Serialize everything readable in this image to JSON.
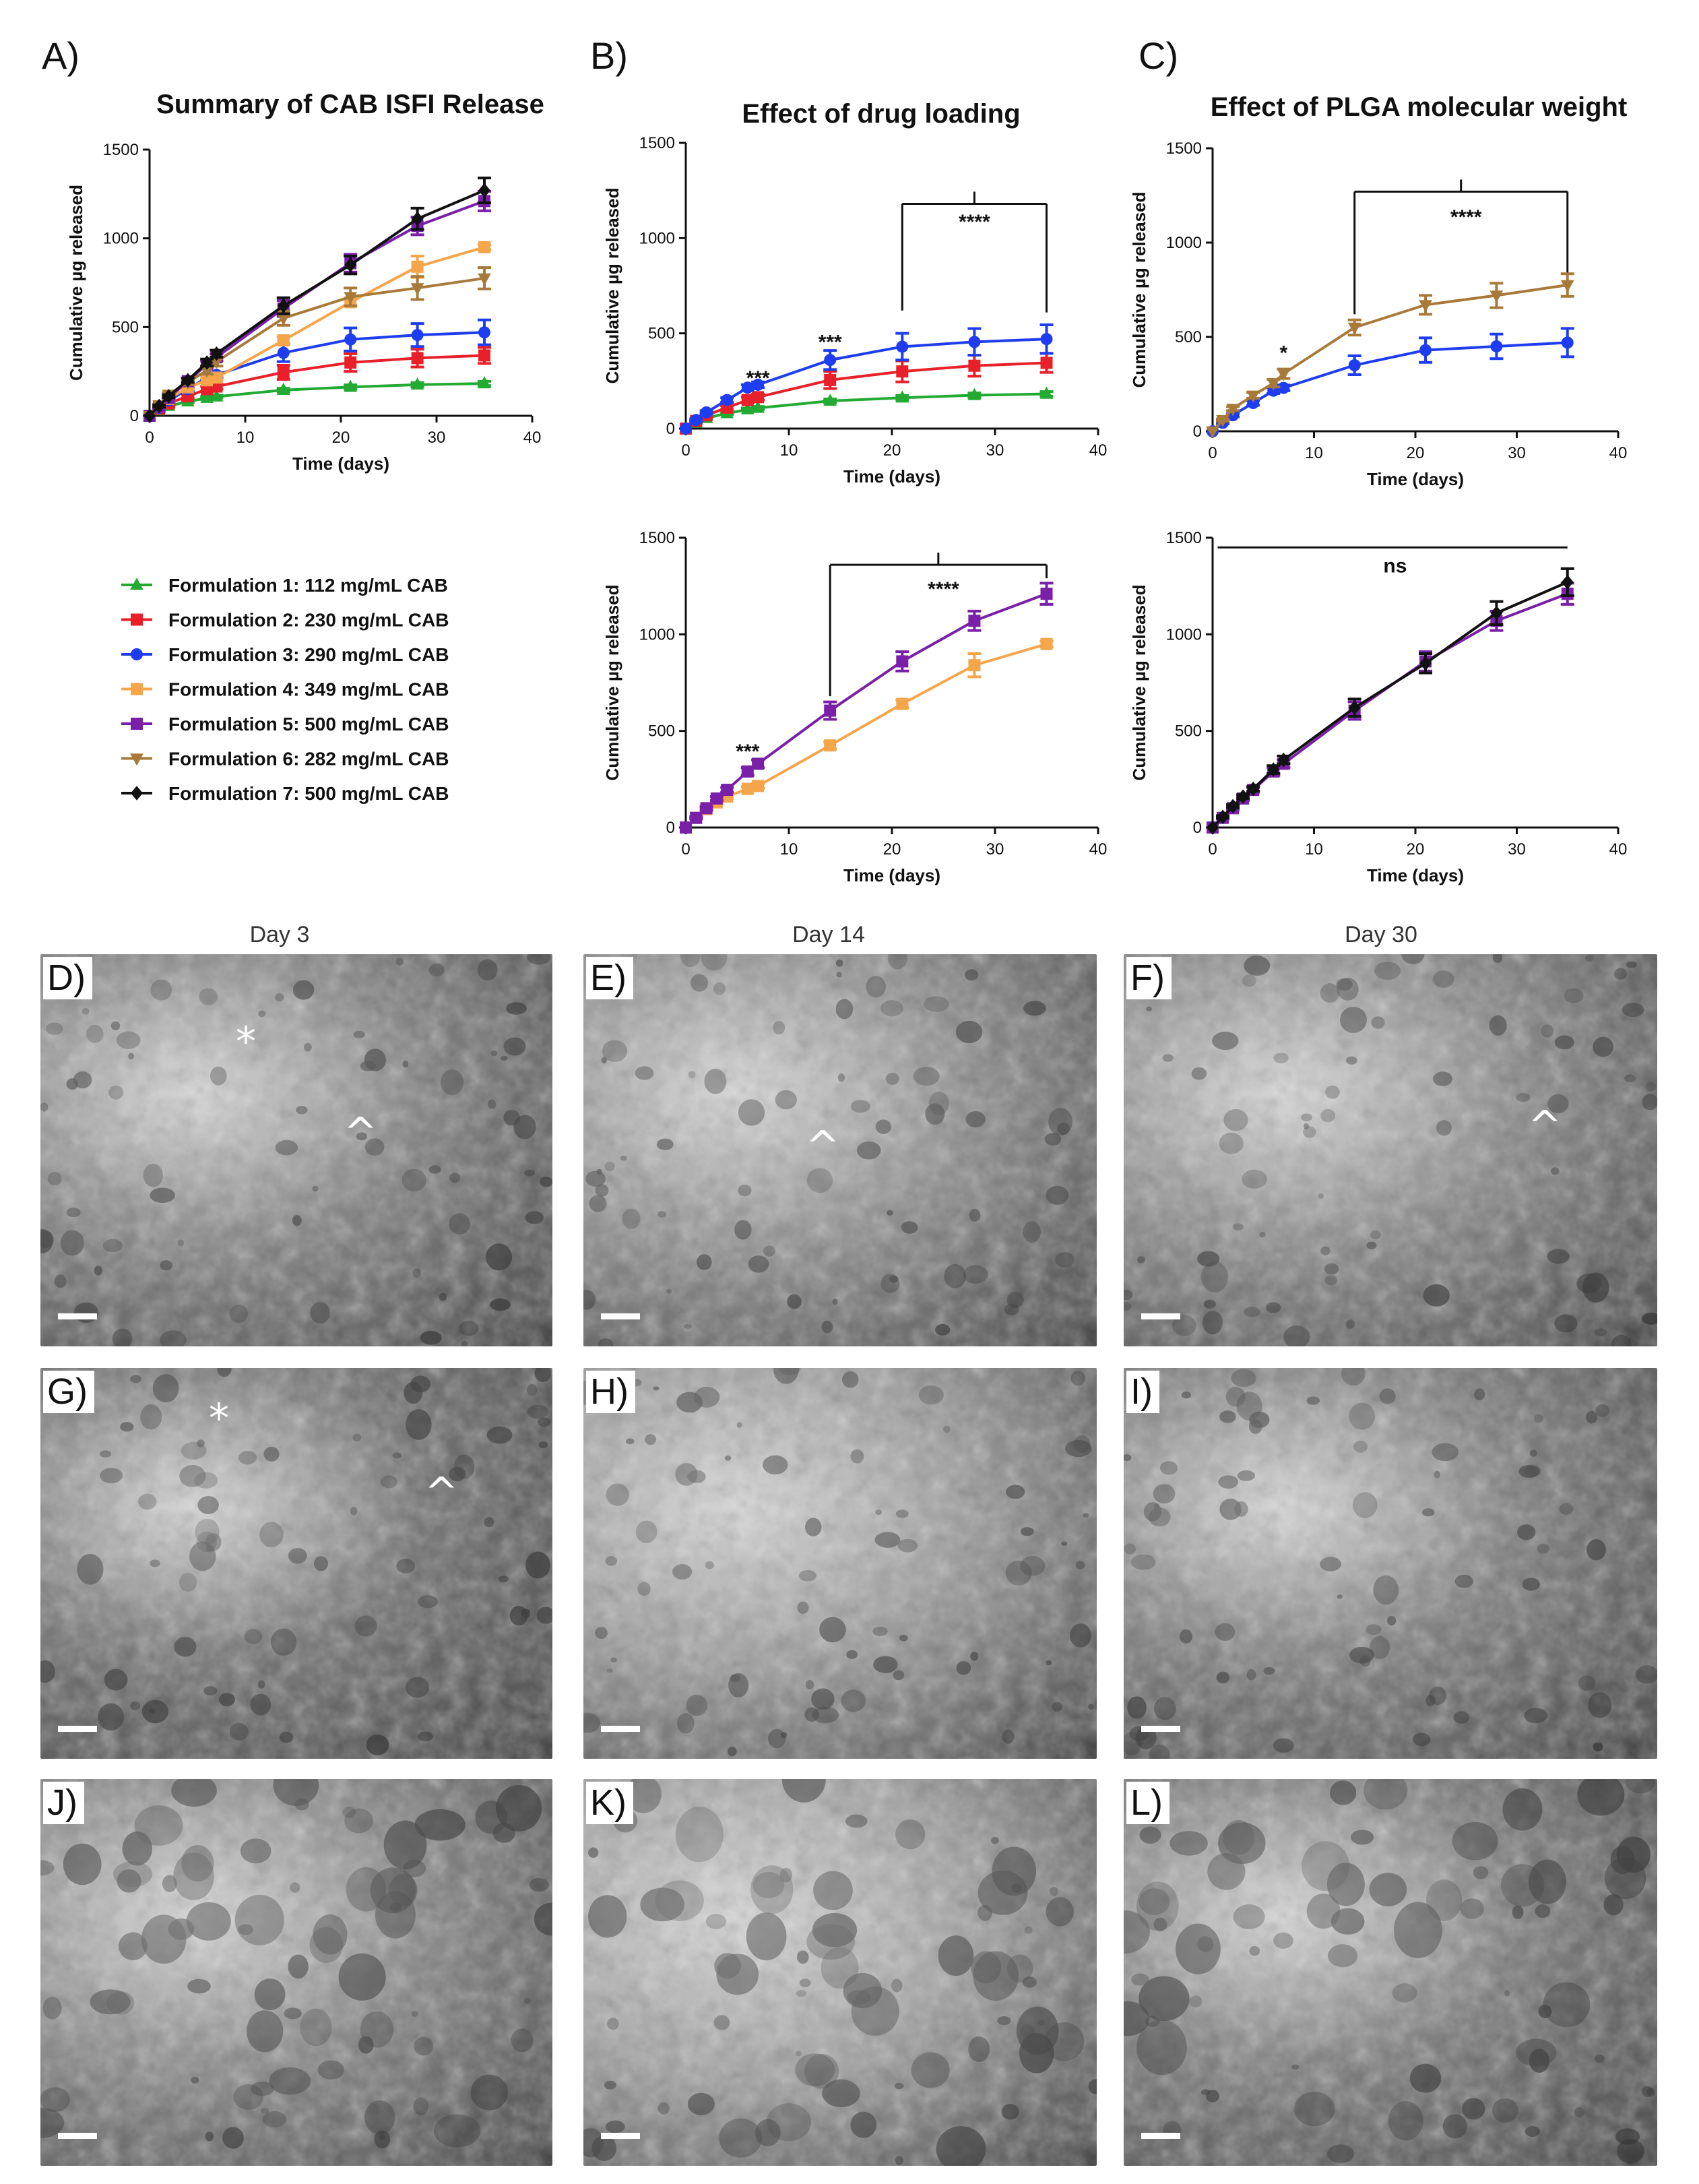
{
  "chart_data": [
    {
      "panel": "A)",
      "type": "line",
      "title": "Summary of CAB ISFI Release",
      "xlabel": "Time (days)",
      "ylabel": "Cumulative µg released",
      "xlim": [
        0,
        40
      ],
      "ylim": [
        0,
        1500
      ],
      "xticks": [
        "0",
        "10",
        "20",
        "30",
        "40"
      ],
      "yticks": [
        "0",
        "500",
        "1000",
        "1500"
      ],
      "series": [
        {
          "name": "Formulation 1: 112 mg/mL CAB",
          "color": "#22aa33",
          "marker": "triangle",
          "x": [
            0,
            1,
            2,
            4,
            6,
            7,
            14,
            21,
            28,
            35
          ],
          "y": [
            0,
            30,
            55,
            80,
            100,
            108,
            145,
            162,
            175,
            182
          ],
          "err": [
            0,
            4,
            5,
            6,
            8,
            8,
            10,
            12,
            12,
            12
          ]
        },
        {
          "name": "Formulation 2: 230 mg/mL CAB",
          "color": "#e8202a",
          "marker": "square",
          "x": [
            0,
            1,
            2,
            4,
            6,
            7,
            14,
            21,
            28,
            35
          ],
          "y": [
            0,
            40,
            70,
            110,
            150,
            165,
            245,
            300,
            325,
            340
          ],
          "err": [
            0,
            5,
            8,
            10,
            15,
            15,
            40,
            50,
            50,
            45
          ]
        },
        {
          "name": "Formulation 3: 290 mg/mL CAB",
          "color": "#1f3df0",
          "marker": "circle",
          "x": [
            0,
            1,
            2,
            4,
            6,
            7,
            14,
            21,
            28,
            35
          ],
          "y": [
            0,
            45,
            85,
            150,
            215,
            230,
            355,
            430,
            455,
            470
          ],
          "err": [
            0,
            6,
            8,
            12,
            15,
            15,
            50,
            65,
            65,
            70
          ]
        },
        {
          "name": "Formulation 4: 349 mg/mL CAB",
          "color": "#f5a54a",
          "marker": "square",
          "x": [
            0,
            1,
            2,
            4,
            6,
            7,
            14,
            21,
            28,
            35
          ],
          "y": [
            0,
            50,
            95,
            160,
            200,
            215,
            425,
            640,
            840,
            950
          ],
          "err": [
            0,
            5,
            8,
            10,
            12,
            12,
            18,
            20,
            60,
            15
          ]
        },
        {
          "name": "Formulation 5: 500 mg/mL CAB",
          "color": "#7a1fa8",
          "marker": "square",
          "x": [
            0,
            1,
            2,
            4,
            6,
            7,
            14,
            21,
            28,
            35
          ],
          "y": [
            0,
            50,
            100,
            195,
            290,
            330,
            605,
            860,
            1070,
            1210
          ],
          "err": [
            0,
            6,
            8,
            12,
            20,
            20,
            45,
            50,
            50,
            55
          ]
        },
        {
          "name": "Formulation 6: 282 mg/mL CAB",
          "color": "#a87a3a",
          "marker": "triangle-down",
          "x": [
            0,
            1,
            2,
            4,
            6,
            7,
            14,
            21,
            28,
            35
          ],
          "y": [
            0,
            60,
            120,
            190,
            255,
            305,
            550,
            670,
            720,
            775
          ],
          "err": [
            0,
            6,
            10,
            15,
            20,
            25,
            40,
            50,
            65,
            60
          ]
        },
        {
          "name": "Formulation 7: 500 mg/mL CAB",
          "color": "#111111",
          "marker": "diamond",
          "x": [
            0,
            1,
            2,
            4,
            6,
            7,
            14,
            21,
            28,
            35
          ],
          "y": [
            0,
            55,
            110,
            200,
            300,
            350,
            620,
            850,
            1110,
            1270
          ],
          "err": [
            0,
            6,
            8,
            12,
            20,
            20,
            45,
            50,
            60,
            70
          ]
        }
      ]
    },
    {
      "panel": "B)",
      "type": "line",
      "title": "Effect of drug loading",
      "xlabel": "Time (days)",
      "ylabel": "Cumulative µg released",
      "xlim": [
        0,
        40
      ],
      "ylim": [
        0,
        1500
      ],
      "xticks": [
        "0",
        "10",
        "20",
        "30",
        "40"
      ],
      "yticks": [
        "0",
        "500",
        "1000",
        "1500"
      ],
      "annotations": [
        {
          "text": "***",
          "x": 7,
          "y": 230
        },
        {
          "text": "***",
          "x": 14,
          "y": 420
        },
        {
          "text": "****",
          "x": 28,
          "y": 1050
        }
      ],
      "bracket": {
        "x1": 21,
        "x2": 35,
        "y": 1180,
        "drop1": 560,
        "drop2": 570
      },
      "series": [
        {
          "name": "Formulation 1: 112 mg/mL CAB",
          "color": "#22aa33",
          "marker": "triangle",
          "x": [
            0,
            1,
            2,
            4,
            6,
            7,
            14,
            21,
            28,
            35
          ],
          "y": [
            0,
            30,
            55,
            80,
            100,
            108,
            145,
            162,
            175,
            182
          ],
          "err": [
            0,
            4,
            5,
            6,
            8,
            8,
            10,
            12,
            12,
            12
          ]
        },
        {
          "name": "Formulation 2: 230 mg/mL CAB",
          "color": "#e8202a",
          "marker": "square",
          "x": [
            0,
            1,
            2,
            4,
            6,
            7,
            14,
            21,
            28,
            35
          ],
          "y": [
            0,
            40,
            70,
            110,
            150,
            165,
            255,
            300,
            330,
            345
          ],
          "err": [
            0,
            5,
            8,
            10,
            15,
            15,
            45,
            55,
            55,
            50
          ]
        },
        {
          "name": "Formulation 3: 290 mg/mL CAB",
          "color": "#1f3df0",
          "marker": "circle",
          "x": [
            0,
            1,
            2,
            4,
            6,
            7,
            14,
            21,
            28,
            35
          ],
          "y": [
            0,
            45,
            85,
            150,
            215,
            230,
            360,
            430,
            455,
            470
          ],
          "err": [
            0,
            6,
            8,
            12,
            15,
            15,
            50,
            70,
            70,
            75
          ]
        }
      ]
    },
    {
      "panel": "C)",
      "type": "line",
      "title": "Effect of PLGA molecular weight",
      "xlabel": "Time (days)",
      "ylabel": "Cumulative µg released",
      "xlim": [
        0,
        40
      ],
      "ylim": [
        0,
        1500
      ],
      "xticks": [
        "0",
        "10",
        "20",
        "30",
        "40"
      ],
      "yticks": [
        "0",
        "500",
        "1000",
        "1500"
      ],
      "annotations": [
        {
          "text": "*",
          "x": 7,
          "y": 380
        },
        {
          "text": "****",
          "x": 25,
          "y": 1100
        }
      ],
      "bracket": {
        "x1": 14,
        "x2": 35,
        "y": 1270,
        "drop1": 650,
        "drop2": 430
      },
      "series": [
        {
          "name": "Formulation 3: 290 mg/mL CAB",
          "color": "#1f3df0",
          "marker": "circle",
          "x": [
            0,
            1,
            2,
            4,
            6,
            7,
            14,
            21,
            28,
            35
          ],
          "y": [
            0,
            45,
            85,
            150,
            215,
            230,
            350,
            430,
            450,
            470
          ],
          "err": [
            0,
            6,
            8,
            12,
            15,
            15,
            50,
            65,
            65,
            75
          ]
        },
        {
          "name": "Formulation 6: 282 mg/mL CAB",
          "color": "#a87a3a",
          "marker": "triangle-down",
          "x": [
            0,
            1,
            2,
            4,
            6,
            7,
            14,
            21,
            28,
            35
          ],
          "y": [
            0,
            60,
            120,
            190,
            255,
            305,
            550,
            670,
            720,
            775
          ],
          "err": [
            0,
            6,
            10,
            15,
            20,
            25,
            40,
            50,
            65,
            60
          ]
        }
      ]
    },
    {
      "panel": "",
      "type": "line",
      "title": "",
      "xlabel": "Time (days)",
      "ylabel": "Cumulative µg released",
      "xlim": [
        0,
        40
      ],
      "ylim": [
        0,
        1500
      ],
      "xticks": [
        "0",
        "10",
        "20",
        "30",
        "40"
      ],
      "yticks": [
        "0",
        "500",
        "1000",
        "1500"
      ],
      "annotations": [
        {
          "text": "***",
          "x": 6,
          "y": 360
        },
        {
          "text": "****",
          "x": 25,
          "y": 1200
        }
      ],
      "bracket": {
        "x1": 14,
        "x2": 35,
        "y": 1360,
        "drop1": 680,
        "drop2": 70
      },
      "series": [
        {
          "name": "Formulation 4: 349 mg/mL CAB",
          "color": "#f5a54a",
          "marker": "square",
          "x": [
            0,
            1,
            2,
            3,
            4,
            6,
            7,
            14,
            21,
            28,
            35
          ],
          "y": [
            0,
            50,
            95,
            130,
            160,
            200,
            215,
            425,
            640,
            840,
            950
          ],
          "err": [
            0,
            5,
            8,
            8,
            10,
            12,
            12,
            18,
            20,
            60,
            15
          ]
        },
        {
          "name": "Formulation 5: 500 mg/mL CAB",
          "color": "#7a1fa8",
          "marker": "square",
          "x": [
            0,
            1,
            2,
            3,
            4,
            6,
            7,
            14,
            21,
            28,
            35
          ],
          "y": [
            0,
            50,
            100,
            150,
            195,
            290,
            330,
            605,
            860,
            1070,
            1210
          ],
          "err": [
            0,
            6,
            8,
            10,
            12,
            20,
            20,
            45,
            50,
            50,
            55
          ]
        }
      ]
    },
    {
      "panel": "",
      "type": "line",
      "title": "",
      "xlabel": "Time (days)",
      "ylabel": "Cumulative µg released",
      "xlim": [
        0,
        40
      ],
      "ylim": [
        0,
        1500
      ],
      "xticks": [
        "0",
        "10",
        "20",
        "30",
        "40"
      ],
      "yticks": [
        "0",
        "500",
        "1000",
        "1500"
      ],
      "annotations": [
        {
          "text": "ns",
          "x": 18,
          "y": 1320
        }
      ],
      "bracket": {
        "x1": 0.5,
        "x2": 35,
        "y": 1450,
        "drop1": 0,
        "drop2": 0
      },
      "series": [
        {
          "name": "Formulation 5: 500 mg/mL CAB",
          "color": "#7a1fa8",
          "marker": "square",
          "x": [
            0,
            1,
            2,
            3,
            4,
            6,
            7,
            14,
            21,
            28,
            35
          ],
          "y": [
            0,
            50,
            100,
            150,
            195,
            290,
            330,
            605,
            860,
            1070,
            1210
          ],
          "err": [
            0,
            6,
            8,
            10,
            12,
            20,
            20,
            45,
            50,
            50,
            55
          ]
        },
        {
          "name": "Formulation 7: 500 mg/mL CAB",
          "color": "#111111",
          "marker": "diamond",
          "x": [
            0,
            1,
            2,
            3,
            4,
            6,
            7,
            14,
            21,
            28,
            35
          ],
          "y": [
            0,
            55,
            110,
            160,
            200,
            300,
            350,
            620,
            850,
            1110,
            1270
          ],
          "err": [
            0,
            6,
            8,
            10,
            12,
            20,
            20,
            45,
            50,
            60,
            70
          ]
        }
      ]
    }
  ],
  "legend": [
    {
      "name": "Formulation 1: 112 mg/mL CAB",
      "color": "#22aa33",
      "marker": "triangle"
    },
    {
      "name": "Formulation 2: 230 mg/mL CAB",
      "color": "#e8202a",
      "marker": "square"
    },
    {
      "name": "Formulation 3: 290 mg/mL CAB",
      "color": "#1f3df0",
      "marker": "circle"
    },
    {
      "name": "Formulation 4: 349 mg/mL CAB",
      "color": "#f5a54a",
      "marker": "square"
    },
    {
      "name": "Formulation 5: 500 mg/mL CAB",
      "color": "#7a1fa8",
      "marker": "square"
    },
    {
      "name": "Formulation 6: 282 mg/mL CAB",
      "color": "#a87a3a",
      "marker": "triangle-down"
    },
    {
      "name": "Formulation 7: 500 mg/mL CAB",
      "color": "#111111",
      "marker": "diamond"
    }
  ],
  "sem": {
    "day_labels": [
      "Day 3",
      "Day 14",
      "Day 30"
    ],
    "panels": [
      {
        "label": "D)",
        "marks": [
          "*",
          "^"
        ]
      },
      {
        "label": "E)",
        "marks": [
          "^"
        ]
      },
      {
        "label": "F)",
        "marks": [
          "^"
        ]
      },
      {
        "label": "G)",
        "marks": [
          "*",
          "^"
        ]
      },
      {
        "label": "H)",
        "marks": []
      },
      {
        "label": "I)",
        "marks": []
      },
      {
        "label": "J)",
        "marks": []
      },
      {
        "label": "K)",
        "marks": []
      },
      {
        "label": "L)",
        "marks": []
      }
    ]
  }
}
